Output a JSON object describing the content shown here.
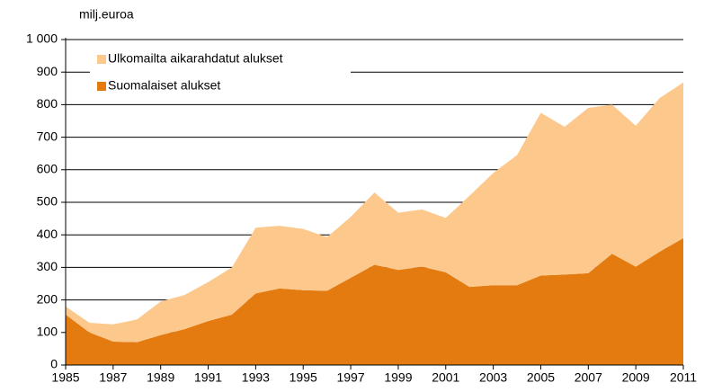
{
  "chart_data": {
    "type": "stacked_area",
    "y_label": "milj.euroa",
    "x": [
      1985,
      1986,
      1987,
      1988,
      1989,
      1990,
      1991,
      1992,
      1993,
      1994,
      1995,
      1996,
      1997,
      1998,
      1999,
      2000,
      2001,
      2002,
      2003,
      2004,
      2005,
      2006,
      2007,
      2008,
      2009,
      2010,
      2011
    ],
    "series": [
      {
        "name": "Suomalaiset alukset",
        "color": "#e47b10",
        "values": [
          155,
          100,
          72,
          70,
          92,
          110,
          135,
          155,
          220,
          235,
          230,
          228,
          268,
          308,
          292,
          302,
          285,
          240,
          245,
          245,
          275,
          278,
          282,
          342,
          302,
          348,
          390
        ]
      },
      {
        "name": "Ulkomailta aikarahdatut alukset",
        "color": "#fcc88c",
        "values": [
          25,
          30,
          53,
          70,
          103,
          105,
          120,
          145,
          202,
          193,
          188,
          165,
          187,
          222,
          176,
          176,
          167,
          280,
          345,
          400,
          500,
          454,
          508,
          458,
          433,
          472,
          478
        ]
      }
    ],
    "xlim": [
      1985,
      2011
    ],
    "xticks": [
      1985,
      1987,
      1989,
      1991,
      1993,
      1995,
      1997,
      1999,
      2001,
      2003,
      2005,
      2007,
      2009,
      2011
    ],
    "ylim": [
      0,
      1000
    ],
    "yticks": [
      0,
      100,
      200,
      300,
      400,
      500,
      600,
      700,
      800,
      900,
      {
        "value": 1000,
        "label": "1 000"
      }
    ],
    "grid": true
  }
}
